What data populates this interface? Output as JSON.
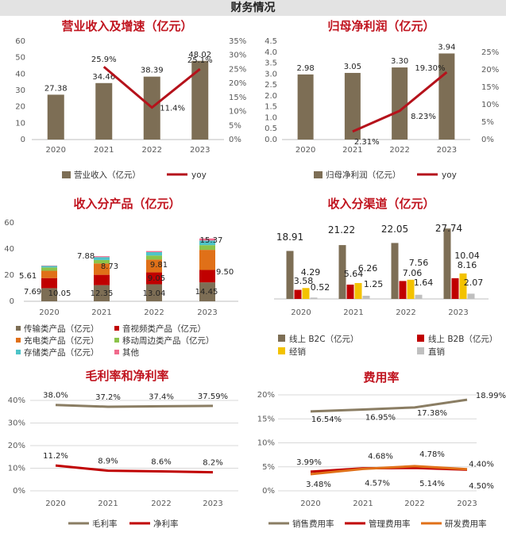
{
  "header": {
    "title": "财务情况"
  },
  "colors": {
    "brown": "#7d6e55",
    "red": "#b5121b",
    "darkred": "#c00000",
    "orange": "#e07018",
    "green": "#8cc34a",
    "cyan": "#4ec4c8",
    "pink": "#f06a8c",
    "yellow": "#f3c200",
    "gray": "#bfbfbf"
  },
  "chart_data": [
    {
      "id": "revenue",
      "type": "bar+line",
      "title": "营业收入及增速（亿元）",
      "categories": [
        "2020",
        "2021",
        "2022",
        "2023"
      ],
      "series": [
        {
          "name": "营业收入（亿元）",
          "type": "bar",
          "axis": "left",
          "values": [
            27.38,
            34.46,
            38.39,
            48.02
          ],
          "labels": [
            "27.38",
            "34.46",
            "38.39",
            "48.02"
          ]
        },
        {
          "name": "yoy",
          "type": "line",
          "axis": "right",
          "values": [
            null,
            25.9,
            11.4,
            25.1
          ],
          "labels": [
            "",
            "25.9%",
            "11.4%",
            "25.1%"
          ]
        }
      ],
      "y_left": {
        "min": 0,
        "max": 60,
        "ticks": [
          "0",
          "10",
          "20",
          "30",
          "40",
          "50",
          "60"
        ]
      },
      "y_right": {
        "min": 0,
        "max": 35,
        "ticks": [
          "0%",
          "5%",
          "10%",
          "15%",
          "20%",
          "25%",
          "30%",
          "35%"
        ]
      },
      "legend": "bottom"
    },
    {
      "id": "netprofit",
      "type": "bar+line",
      "title": "归母净利润（亿元）",
      "categories": [
        "2020",
        "2021",
        "2022",
        "2023"
      ],
      "series": [
        {
          "name": "归母净利润（亿元）",
          "type": "bar",
          "axis": "left",
          "values": [
            2.98,
            3.05,
            3.3,
            3.94
          ],
          "labels": [
            "2.98",
            "3.05",
            "3.30",
            "3.94"
          ]
        },
        {
          "name": "yoy",
          "type": "line",
          "axis": "right",
          "values": [
            null,
            2.31,
            8.23,
            19.3
          ],
          "labels": [
            "",
            "2.31%",
            "8.23%",
            "19.30%"
          ]
        }
      ],
      "y_left": {
        "min": 0,
        "max": 4.5,
        "ticks": [
          "0.0",
          "0.5",
          "1.0",
          "1.5",
          "2.0",
          "2.5",
          "3.0",
          "3.5",
          "4.0",
          "4.5"
        ]
      },
      "y_right": {
        "min": 0,
        "max": 25,
        "ticks": [
          "0%",
          "5%",
          "10%",
          "15%",
          "20%",
          "25%"
        ]
      },
      "legend": "bottom"
    },
    {
      "id": "product",
      "type": "stacked-bar",
      "title": "收入分产品（亿元）",
      "categories": [
        "2020",
        "2021",
        "2022",
        "2023"
      ],
      "series": [
        {
          "name": "传输类产品（亿元）",
          "values": [
            10.05,
            12.35,
            13.04,
            14.45
          ]
        },
        {
          "name": "音视频类产品（亿元）",
          "values": [
            7.69,
            7.88,
            9.05,
            9.5
          ]
        },
        {
          "name": "充电类产品（亿元）",
          "values": [
            5.61,
            8.73,
            9.81,
            15.37
          ]
        },
        {
          "name": "移动周边类产品（亿元）",
          "values": [
            2.5,
            2.6,
            3.1,
            3.6
          ]
        },
        {
          "name": "存储类产品（亿元）",
          "values": [
            1.2,
            2.2,
            2.6,
            3.5
          ]
        },
        {
          "name": "其他",
          "values": [
            0.3,
            0.7,
            0.8,
            1.6
          ]
        }
      ],
      "point_labels": [
        [
          "10.05",
          "7.69",
          "5.61"
        ],
        [
          "12.35",
          "7.88",
          "8.73"
        ],
        [
          "13.04",
          "9.05",
          "9.81"
        ],
        [
          "14.45",
          "9.50",
          "15.37"
        ]
      ],
      "y": {
        "min": 0,
        "max": 60,
        "ticks": [
          "0",
          "20",
          "40",
          "60"
        ]
      },
      "legend": "bottom"
    },
    {
      "id": "channel",
      "type": "bar",
      "title": "收入分渠道（亿元）",
      "categories": [
        "2020",
        "2021",
        "2022",
        "2023"
      ],
      "series": [
        {
          "name": "线上 B2C（亿元）",
          "values": [
            18.91,
            21.22,
            22.05,
            27.74
          ]
        },
        {
          "name": "线上 B2B（亿元）",
          "values": [
            3.58,
            5.64,
            7.06,
            8.16
          ]
        },
        {
          "name": "经销",
          "values": [
            4.29,
            6.26,
            7.56,
            10.04
          ]
        },
        {
          "name": "直销",
          "values": [
            0.52,
            1.25,
            1.64,
            2.07
          ]
        }
      ],
      "y": {
        "min": 0,
        "max": 30
      },
      "legend": "bottom"
    },
    {
      "id": "margin",
      "type": "line",
      "title": "毛利率和净利率",
      "categories": [
        "2020",
        "2021",
        "2022",
        "2023"
      ],
      "series": [
        {
          "name": "毛利率",
          "values": [
            38.0,
            37.2,
            37.4,
            37.59
          ],
          "labels": [
            "38.0%",
            "37.2%",
            "37.4%",
            "37.59%"
          ]
        },
        {
          "name": "净利率",
          "values": [
            11.2,
            8.9,
            8.6,
            8.2
          ],
          "labels": [
            "11.2%",
            "8.9%",
            "8.6%",
            "8.2%"
          ]
        }
      ],
      "y": {
        "min": 0,
        "max": 40,
        "ticks": [
          "0%",
          "10%",
          "20%",
          "30%",
          "40%"
        ]
      },
      "legend": "bottom"
    },
    {
      "id": "expense",
      "type": "line",
      "title": "费用率",
      "categories": [
        "2020",
        "2021",
        "2022",
        "2023"
      ],
      "series": [
        {
          "name": "销售费用率",
          "values": [
            16.54,
            16.95,
            17.38,
            18.99
          ],
          "labels": [
            "16.54%",
            "16.95%",
            "17.38%",
            "18.99%"
          ]
        },
        {
          "name": "管理费用率",
          "values": [
            3.99,
            4.68,
            4.78,
            4.4
          ],
          "labels": [
            "3.99%",
            "4.68%",
            "4.78%",
            "4.40%"
          ]
        },
        {
          "name": "研发费用率",
          "values": [
            3.48,
            4.57,
            5.14,
            4.5
          ],
          "labels": [
            "3.48%",
            "4.57%",
            "5.14%",
            "4.50%"
          ]
        }
      ],
      "y": {
        "min": 0,
        "max": 20,
        "ticks": [
          "0%",
          "5%",
          "10%",
          "15%",
          "20%"
        ]
      },
      "legend": "bottom"
    }
  ]
}
